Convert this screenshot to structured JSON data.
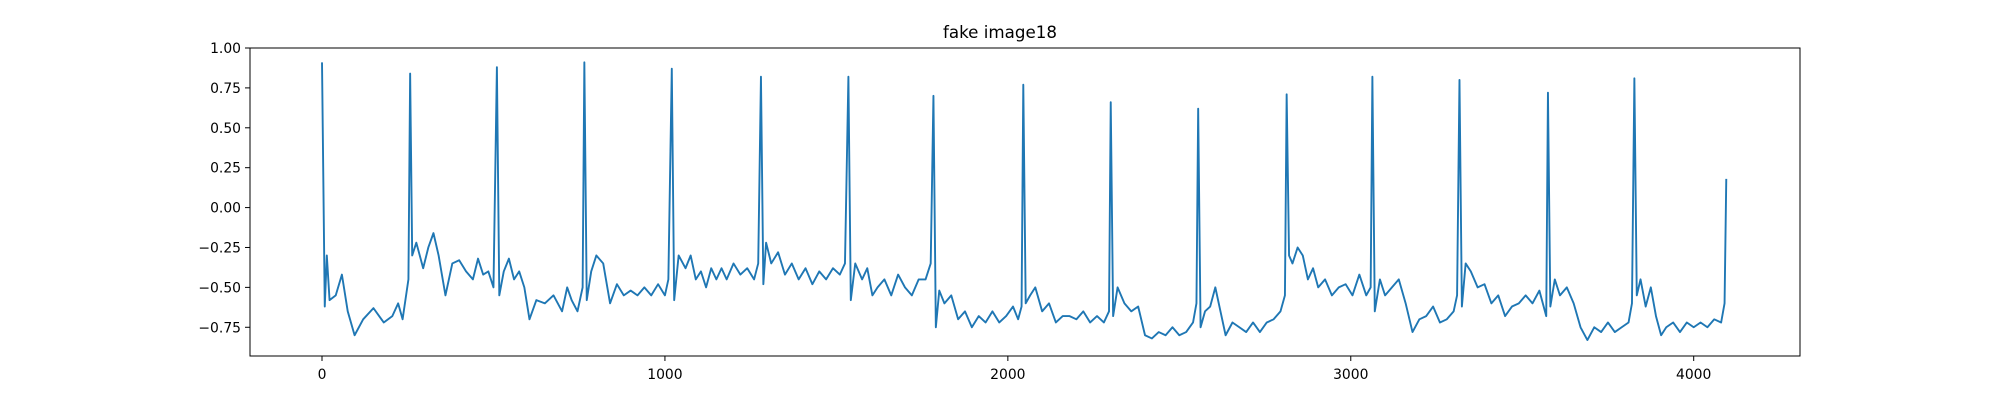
{
  "chart_data": {
    "type": "line",
    "title": "fake image18",
    "xlabel": "",
    "ylabel": "",
    "xlim": [
      -210,
      4310
    ],
    "ylim": [
      -0.93,
      1.0
    ],
    "grid": false,
    "legend": null,
    "line_color": "#1f77b4",
    "x_ticks": [
      0,
      1000,
      2000,
      3000,
      4000
    ],
    "x_tick_labels": [
      "0",
      "1000",
      "2000",
      "3000",
      "4000"
    ],
    "y_ticks": [
      1.0,
      0.75,
      0.5,
      0.25,
      0.0,
      -0.25,
      -0.5,
      -0.75
    ],
    "y_tick_labels": [
      "1.00",
      "0.75",
      "0.50",
      "0.25",
      "0.00",
      "−0.25",
      "−0.50",
      "−0.75"
    ],
    "series": [
      {
        "values": [
          [
            0,
            0.91
          ],
          [
            8,
            -0.62
          ],
          [
            14,
            -0.3
          ],
          [
            22,
            -0.58
          ],
          [
            40,
            -0.55
          ],
          [
            58,
            -0.42
          ],
          [
            75,
            -0.65
          ],
          [
            95,
            -0.8
          ],
          [
            120,
            -0.7
          ],
          [
            150,
            -0.63
          ],
          [
            180,
            -0.72
          ],
          [
            205,
            -0.68
          ],
          [
            222,
            -0.6
          ],
          [
            235,
            -0.7
          ],
          [
            252,
            -0.45
          ],
          [
            257,
            0.84
          ],
          [
            263,
            -0.3
          ],
          [
            275,
            -0.22
          ],
          [
            295,
            -0.38
          ],
          [
            310,
            -0.25
          ],
          [
            325,
            -0.16
          ],
          [
            340,
            -0.3
          ],
          [
            360,
            -0.55
          ],
          [
            380,
            -0.35
          ],
          [
            400,
            -0.33
          ],
          [
            420,
            -0.4
          ],
          [
            440,
            -0.45
          ],
          [
            455,
            -0.32
          ],
          [
            470,
            -0.42
          ],
          [
            485,
            -0.4
          ],
          [
            500,
            -0.5
          ],
          [
            510,
            0.88
          ],
          [
            517,
            -0.55
          ],
          [
            530,
            -0.4
          ],
          [
            545,
            -0.32
          ],
          [
            560,
            -0.45
          ],
          [
            575,
            -0.4
          ],
          [
            590,
            -0.5
          ],
          [
            605,
            -0.7
          ],
          [
            625,
            -0.58
          ],
          [
            650,
            -0.6
          ],
          [
            675,
            -0.55
          ],
          [
            700,
            -0.65
          ],
          [
            715,
            -0.5
          ],
          [
            728,
            -0.58
          ],
          [
            745,
            -0.65
          ],
          [
            760,
            -0.5
          ],
          [
            765,
            0.91
          ],
          [
            772,
            -0.58
          ],
          [
            785,
            -0.4
          ],
          [
            800,
            -0.3
          ],
          [
            820,
            -0.35
          ],
          [
            840,
            -0.6
          ],
          [
            860,
            -0.48
          ],
          [
            880,
            -0.55
          ],
          [
            900,
            -0.52
          ],
          [
            920,
            -0.55
          ],
          [
            940,
            -0.5
          ],
          [
            960,
            -0.55
          ],
          [
            980,
            -0.48
          ],
          [
            1000,
            -0.55
          ],
          [
            1010,
            -0.45
          ],
          [
            1020,
            0.87
          ],
          [
            1027,
            -0.58
          ],
          [
            1040,
            -0.3
          ],
          [
            1060,
            -0.38
          ],
          [
            1075,
            -0.3
          ],
          [
            1090,
            -0.45
          ],
          [
            1105,
            -0.4
          ],
          [
            1120,
            -0.5
          ],
          [
            1135,
            -0.38
          ],
          [
            1150,
            -0.45
          ],
          [
            1165,
            -0.38
          ],
          [
            1180,
            -0.45
          ],
          [
            1200,
            -0.35
          ],
          [
            1220,
            -0.42
          ],
          [
            1240,
            -0.38
          ],
          [
            1260,
            -0.45
          ],
          [
            1272,
            -0.35
          ],
          [
            1280,
            0.82
          ],
          [
            1287,
            -0.48
          ],
          [
            1295,
            -0.22
          ],
          [
            1310,
            -0.35
          ],
          [
            1330,
            -0.28
          ],
          [
            1350,
            -0.42
          ],
          [
            1370,
            -0.35
          ],
          [
            1390,
            -0.45
          ],
          [
            1410,
            -0.38
          ],
          [
            1430,
            -0.48
          ],
          [
            1450,
            -0.4
          ],
          [
            1470,
            -0.45
          ],
          [
            1490,
            -0.38
          ],
          [
            1510,
            -0.42
          ],
          [
            1525,
            -0.35
          ],
          [
            1535,
            0.82
          ],
          [
            1542,
            -0.58
          ],
          [
            1555,
            -0.35
          ],
          [
            1575,
            -0.45
          ],
          [
            1590,
            -0.38
          ],
          [
            1605,
            -0.55
          ],
          [
            1620,
            -0.5
          ],
          [
            1640,
            -0.45
          ],
          [
            1660,
            -0.55
          ],
          [
            1680,
            -0.42
          ],
          [
            1700,
            -0.5
          ],
          [
            1720,
            -0.55
          ],
          [
            1740,
            -0.45
          ],
          [
            1760,
            -0.45
          ],
          [
            1775,
            -0.35
          ],
          [
            1783,
            0.7
          ],
          [
            1790,
            -0.75
          ],
          [
            1800,
            -0.52
          ],
          [
            1815,
            -0.6
          ],
          [
            1835,
            -0.55
          ],
          [
            1855,
            -0.7
          ],
          [
            1875,
            -0.65
          ],
          [
            1895,
            -0.75
          ],
          [
            1915,
            -0.68
          ],
          [
            1935,
            -0.72
          ],
          [
            1955,
            -0.65
          ],
          [
            1975,
            -0.72
          ],
          [
            1995,
            -0.68
          ],
          [
            2015,
            -0.62
          ],
          [
            2030,
            -0.7
          ],
          [
            2040,
            -0.62
          ],
          [
            2045,
            0.77
          ],
          [
            2052,
            -0.6
          ],
          [
            2065,
            -0.55
          ],
          [
            2080,
            -0.5
          ],
          [
            2100,
            -0.65
          ],
          [
            2120,
            -0.6
          ],
          [
            2140,
            -0.72
          ],
          [
            2160,
            -0.68
          ],
          [
            2180,
            -0.68
          ],
          [
            2200,
            -0.7
          ],
          [
            2220,
            -0.65
          ],
          [
            2240,
            -0.72
          ],
          [
            2260,
            -0.68
          ],
          [
            2280,
            -0.72
          ],
          [
            2295,
            -0.65
          ],
          [
            2300,
            0.66
          ],
          [
            2307,
            -0.68
          ],
          [
            2320,
            -0.5
          ],
          [
            2340,
            -0.6
          ],
          [
            2360,
            -0.65
          ],
          [
            2380,
            -0.62
          ],
          [
            2400,
            -0.8
          ],
          [
            2420,
            -0.82
          ],
          [
            2440,
            -0.78
          ],
          [
            2460,
            -0.8
          ],
          [
            2480,
            -0.75
          ],
          [
            2500,
            -0.8
          ],
          [
            2520,
            -0.78
          ],
          [
            2540,
            -0.72
          ],
          [
            2550,
            -0.6
          ],
          [
            2555,
            0.62
          ],
          [
            2562,
            -0.75
          ],
          [
            2575,
            -0.65
          ],
          [
            2590,
            -0.62
          ],
          [
            2605,
            -0.5
          ],
          [
            2620,
            -0.65
          ],
          [
            2635,
            -0.8
          ],
          [
            2655,
            -0.72
          ],
          [
            2675,
            -0.75
          ],
          [
            2695,
            -0.78
          ],
          [
            2715,
            -0.72
          ],
          [
            2735,
            -0.78
          ],
          [
            2755,
            -0.72
          ],
          [
            2775,
            -0.7
          ],
          [
            2795,
            -0.65
          ],
          [
            2808,
            -0.55
          ],
          [
            2813,
            0.71
          ],
          [
            2820,
            -0.3
          ],
          [
            2830,
            -0.35
          ],
          [
            2845,
            -0.25
          ],
          [
            2860,
            -0.3
          ],
          [
            2875,
            -0.45
          ],
          [
            2890,
            -0.38
          ],
          [
            2905,
            -0.5
          ],
          [
            2925,
            -0.45
          ],
          [
            2945,
            -0.55
          ],
          [
            2965,
            -0.5
          ],
          [
            2985,
            -0.48
          ],
          [
            3005,
            -0.55
          ],
          [
            3025,
            -0.42
          ],
          [
            3045,
            -0.55
          ],
          [
            3058,
            -0.5
          ],
          [
            3063,
            0.82
          ],
          [
            3070,
            -0.65
          ],
          [
            3085,
            -0.45
          ],
          [
            3100,
            -0.55
          ],
          [
            3120,
            -0.5
          ],
          [
            3140,
            -0.45
          ],
          [
            3160,
            -0.6
          ],
          [
            3180,
            -0.78
          ],
          [
            3200,
            -0.7
          ],
          [
            3220,
            -0.68
          ],
          [
            3240,
            -0.62
          ],
          [
            3260,
            -0.72
          ],
          [
            3280,
            -0.7
          ],
          [
            3300,
            -0.65
          ],
          [
            3310,
            -0.55
          ],
          [
            3317,
            0.8
          ],
          [
            3324,
            -0.62
          ],
          [
            3335,
            -0.35
          ],
          [
            3350,
            -0.4
          ],
          [
            3370,
            -0.5
          ],
          [
            3390,
            -0.48
          ],
          [
            3410,
            -0.6
          ],
          [
            3430,
            -0.55
          ],
          [
            3450,
            -0.68
          ],
          [
            3470,
            -0.62
          ],
          [
            3490,
            -0.6
          ],
          [
            3510,
            -0.55
          ],
          [
            3530,
            -0.6
          ],
          [
            3550,
            -0.52
          ],
          [
            3570,
            -0.68
          ],
          [
            3575,
            0.72
          ],
          [
            3582,
            -0.62
          ],
          [
            3595,
            -0.45
          ],
          [
            3610,
            -0.55
          ],
          [
            3630,
            -0.5
          ],
          [
            3650,
            -0.6
          ],
          [
            3670,
            -0.75
          ],
          [
            3690,
            -0.83
          ],
          [
            3710,
            -0.75
          ],
          [
            3730,
            -0.78
          ],
          [
            3750,
            -0.72
          ],
          [
            3770,
            -0.78
          ],
          [
            3790,
            -0.75
          ],
          [
            3810,
            -0.72
          ],
          [
            3820,
            -0.6
          ],
          [
            3827,
            0.81
          ],
          [
            3834,
            -0.55
          ],
          [
            3845,
            -0.45
          ],
          [
            3860,
            -0.62
          ],
          [
            3875,
            -0.5
          ],
          [
            3890,
            -0.68
          ],
          [
            3905,
            -0.8
          ],
          [
            3920,
            -0.75
          ],
          [
            3940,
            -0.72
          ],
          [
            3960,
            -0.78
          ],
          [
            3980,
            -0.72
          ],
          [
            4000,
            -0.75
          ],
          [
            4020,
            -0.72
          ],
          [
            4040,
            -0.75
          ],
          [
            4060,
            -0.7
          ],
          [
            4080,
            -0.72
          ],
          [
            4090,
            -0.6
          ],
          [
            4095,
            0.18
          ]
        ]
      }
    ]
  }
}
